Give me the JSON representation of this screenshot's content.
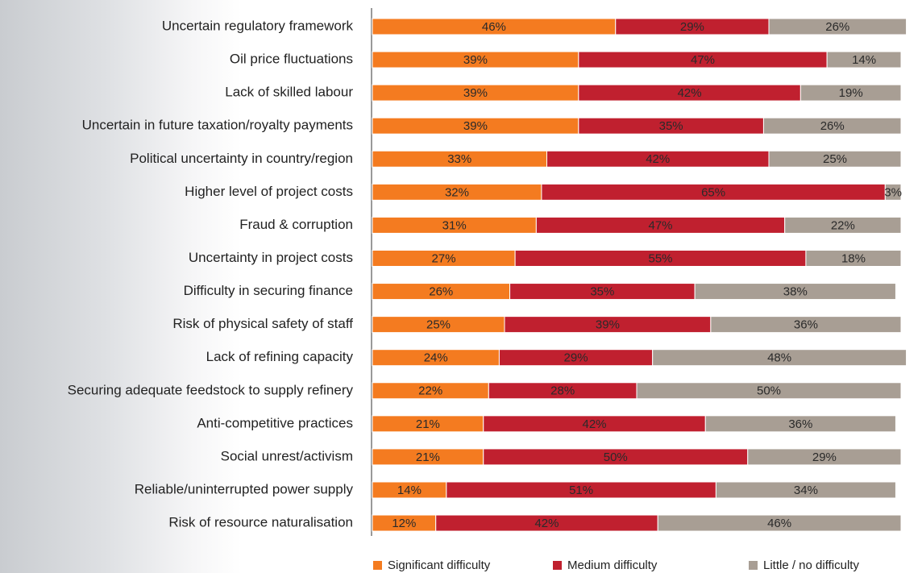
{
  "chart_data": {
    "type": "stacked-bar",
    "orientation": "horizontal",
    "categories": [
      "Uncertain regulatory framework",
      "Oil price fluctuations",
      "Lack of skilled labour",
      "Uncertain in future taxation/royalty payments",
      "Political uncertainty in country/region",
      "Higher level of project costs",
      "Fraud & corruption",
      "Uncertainty in project costs",
      "Difficulty in securing finance",
      "Risk of physical safety of staff",
      "Lack of refining capacity",
      "Securing adequate feedstock to supply refinery",
      "Anti-competitive practices",
      "Social unrest/activism",
      "Reliable/uninterrupted power supply",
      "Risk of resource naturalisation"
    ],
    "series": [
      {
        "name": "Significant difficulty",
        "color": "#f47b20",
        "values": [
          46,
          39,
          39,
          39,
          33,
          32,
          31,
          27,
          26,
          25,
          24,
          22,
          21,
          21,
          14,
          12
        ],
        "value_labels": [
          "46%",
          "39%",
          "39%",
          "39%",
          "33%",
          "32%",
          "31%",
          "27%",
          "26%",
          "25%",
          "24%",
          "22%",
          "21%",
          "21%",
          "14%",
          "12%"
        ]
      },
      {
        "name": "Medium difficulty",
        "color": "#c0202f",
        "values": [
          29,
          47,
          42,
          35,
          42,
          65,
          47,
          55,
          35,
          39,
          29,
          28,
          42,
          50,
          51,
          42
        ],
        "value_labels": [
          "29%",
          "47%",
          "42%",
          "35%",
          "42%",
          "65%",
          "47%",
          "55%",
          "35%",
          "39%",
          "29%",
          "28%",
          "42%",
          "50%",
          "51%",
          "42%"
        ]
      },
      {
        "name": "Little / no difficulty",
        "color": "#a89e94",
        "values": [
          26,
          14,
          19,
          26,
          25,
          3,
          22,
          18,
          38,
          36,
          48,
          50,
          36,
          29,
          34,
          46
        ],
        "value_labels": [
          "26%",
          "14%",
          "19%",
          "26%",
          "25%",
          "3%",
          "22%",
          "18%",
          "38%",
          "36%",
          "48%",
          "50%",
          "36%",
          "29%",
          "34%",
          "46%"
        ]
      }
    ],
    "xlim": [
      0,
      100
    ],
    "legend": "bottom"
  }
}
